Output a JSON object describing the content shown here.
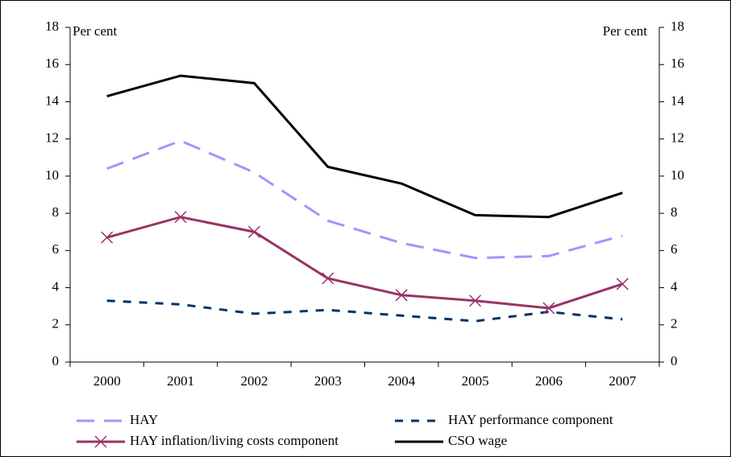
{
  "chart_data": {
    "type": "line",
    "ylabel": "Per cent",
    "y2label": "Per cent",
    "categories": [
      "2000",
      "2001",
      "2002",
      "2003",
      "2004",
      "2005",
      "2006",
      "2007"
    ],
    "series": [
      {
        "name": "HAY",
        "color": "#9999ff",
        "dash": "22 12",
        "values": [
          10.4,
          11.9,
          10.2,
          7.6,
          6.4,
          5.6,
          5.7,
          6.8
        ]
      },
      {
        "name": "HAY performance component",
        "color": "#003366",
        "dash": "10 10",
        "values": [
          3.3,
          3.1,
          2.6,
          2.8,
          2.5,
          2.2,
          2.7,
          2.3
        ]
      },
      {
        "name": "HAY inflation/living costs component",
        "color": "#993366",
        "marker": "x",
        "values": [
          6.7,
          7.8,
          7.0,
          4.5,
          3.6,
          3.3,
          2.9,
          4.2
        ]
      },
      {
        "name": "CSO wage",
        "color": "#000000",
        "values": [
          14.3,
          15.4,
          15.0,
          10.5,
          9.6,
          7.9,
          7.8,
          9.1
        ]
      }
    ],
    "ylim": [
      0,
      18
    ],
    "yticks": [
      0,
      2,
      4,
      6,
      8,
      10,
      12,
      14,
      16,
      18
    ],
    "y2lim": [
      0,
      18
    ],
    "y2ticks": [
      0,
      2,
      4,
      6,
      8,
      10,
      12,
      14,
      16,
      18
    ]
  }
}
